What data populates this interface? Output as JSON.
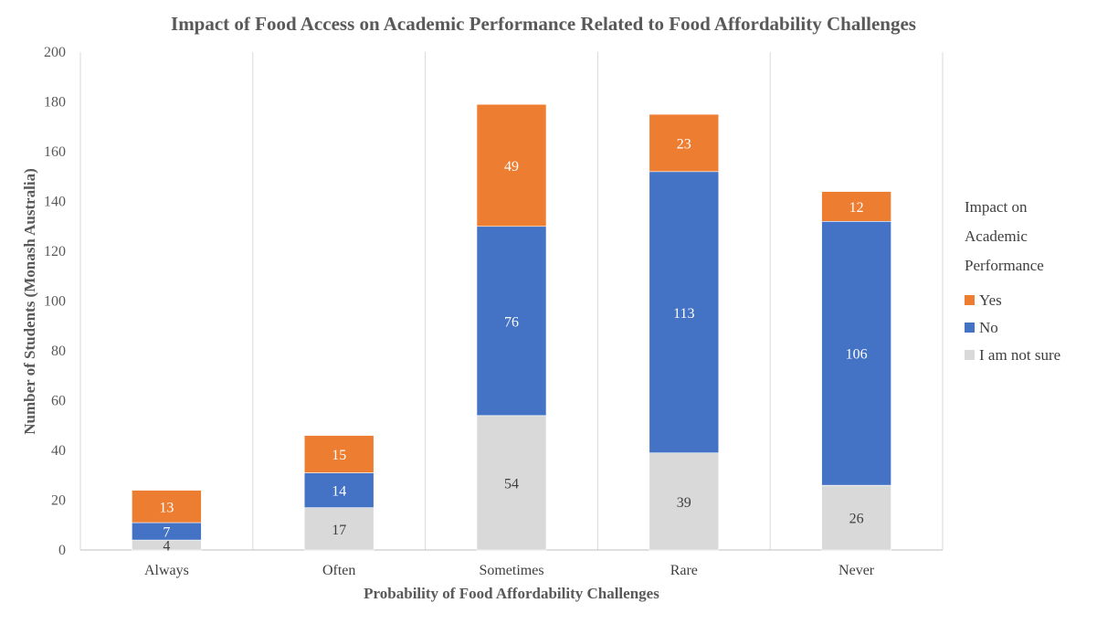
{
  "chart_data": {
    "type": "bar",
    "stacked": true,
    "title": "Impact of Food Access on Academic Performance Related to Food Affordability Challenges",
    "xlabel": "Probability of Food Affordability Challenges",
    "ylabel": "Number of Students (Monash Australia)",
    "ylim": [
      0,
      200
    ],
    "yticks": [
      0,
      20,
      40,
      60,
      80,
      100,
      120,
      140,
      160,
      180,
      200
    ],
    "categories": [
      "Always",
      "Often",
      "Sometimes",
      "Rare",
      "Never"
    ],
    "series": [
      {
        "name": "I am not sure",
        "values": [
          4,
          17,
          54,
          39,
          26
        ],
        "color": "#d9d9d9",
        "label_color": "#404040"
      },
      {
        "name": "No",
        "values": [
          7,
          14,
          76,
          113,
          106
        ],
        "color": "#4472c4",
        "label_color": "#ffffff"
      },
      {
        "name": "Yes",
        "values": [
          13,
          15,
          49,
          23,
          12
        ],
        "color": "#ed7d31",
        "label_color": "#ffffff"
      }
    ],
    "legend": {
      "title_lines": [
        "Impact on",
        "Academic",
        "Performance"
      ],
      "position": "right",
      "order": [
        "Yes",
        "No",
        "I am not sure"
      ]
    },
    "grid": {
      "vertical_separators": true,
      "horizontal": false
    }
  }
}
